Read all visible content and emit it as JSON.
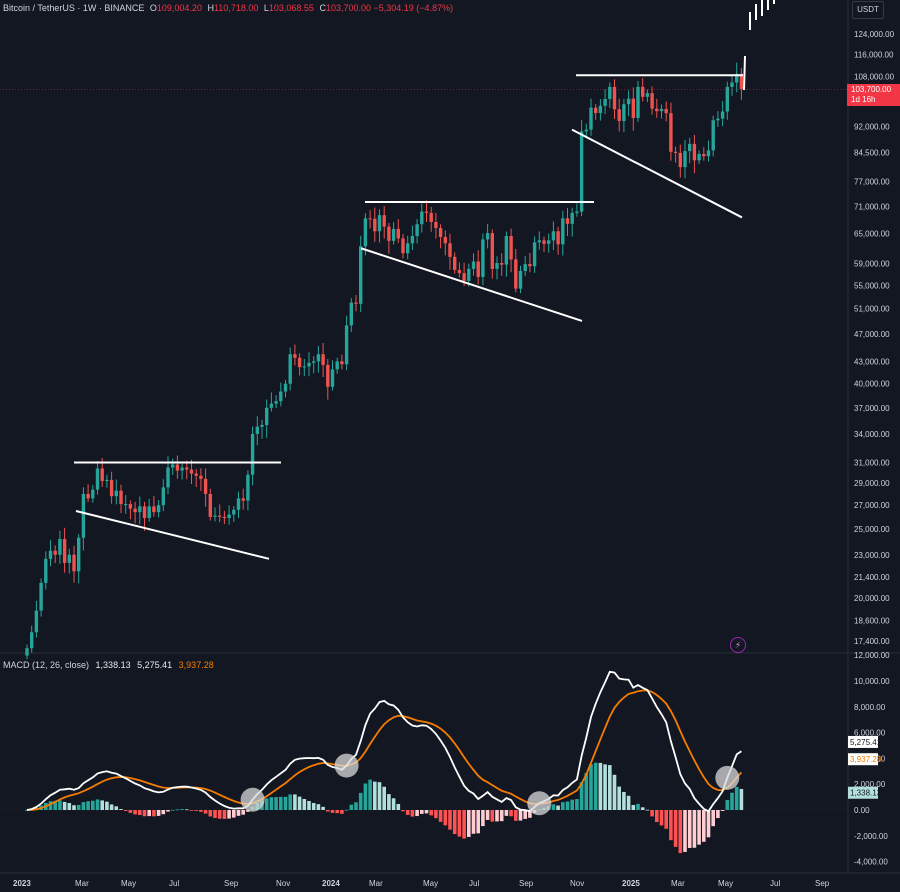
{
  "header": {
    "symbol": "Bitcoin / TetherUS · 1W · BINANCE",
    "o_label": "O",
    "o_value": "109,004.20",
    "h_label": "H",
    "h_value": "110,718.00",
    "l_label": "L",
    "l_value": "103,068.55",
    "c_label": "C",
    "c_value": "103,700.00",
    "change": "−5,304.19 (−4.87%)"
  },
  "currency": "USDT",
  "current_price": {
    "value": "103,700.00",
    "countdown": "1d 16h"
  },
  "macd_header": {
    "title": "MACD (12, 26, close)",
    "histogram": "1,338.13",
    "macd": "5,275.41",
    "signal": "3,937.28"
  },
  "colors": {
    "background": "#131722",
    "up": "#26a69a",
    "down": "#ef5350",
    "macd_line": "#ffffff",
    "signal_line": "#f57c00",
    "hist_up_strong": "#26a69a",
    "hist_up_weak": "#b2dfdb",
    "hist_down_strong": "#ff5252",
    "hist_down_weak": "#ffcdd2"
  },
  "chart_data": [
    {
      "type": "candlestick",
      "scale": "log",
      "price_axis_labels": [
        "124,000.00",
        "116,000.00",
        "108,000.00",
        "100,000.00",
        "92,000.00",
        "84,500.00",
        "77,000.00",
        "71,000.00",
        "65,000.00",
        "59,000.00",
        "55,000.00",
        "51,000.00",
        "47,000.00",
        "43,000.00",
        "40,000.00",
        "37,000.00",
        "34,000.00",
        "31,000.00",
        "29,000.00",
        "27,000.00",
        "25,000.00",
        "23,000.00",
        "21,400.00",
        "20,000.00",
        "18,600.00",
        "17,400.00"
      ],
      "time_axis_labels": [
        "2023",
        "Mar",
        "May",
        "Jul",
        "Sep",
        "Nov",
        "2024",
        "Mar",
        "May",
        "Jul",
        "Sep",
        "Nov",
        "2025",
        "Mar",
        "May",
        "Jul",
        "Sep"
      ],
      "closes": [
        17000,
        17900,
        19200,
        21000,
        22700,
        23300,
        23000,
        24200,
        22400,
        23000,
        21800,
        24300,
        28000,
        27600,
        28400,
        30400,
        29200,
        29300,
        27800,
        28300,
        27100,
        27100,
        26700,
        26400,
        26900,
        25900,
        26900,
        26400,
        27000,
        28600,
        30500,
        30800,
        30200,
        30500,
        30300,
        29900,
        29700,
        29400,
        28000,
        26000,
        26100,
        26000,
        25900,
        26200,
        26600,
        27600,
        27400,
        29800,
        34000,
        34800,
        35000,
        37000,
        37500,
        37800,
        39000,
        40000,
        44000,
        43500,
        42200,
        42300,
        42800,
        43000,
        44000,
        42500,
        39600,
        41900,
        43000,
        42600,
        48300,
        52000,
        51800,
        62400,
        68300,
        68200,
        65500,
        69000,
        66500,
        63500,
        66000,
        64000,
        61000,
        63000,
        64500,
        67000,
        69800,
        69500,
        67500,
        66200,
        64300,
        63000,
        60300,
        57800,
        57200,
        55800,
        58000,
        59400,
        56500,
        63800,
        65100,
        58000,
        59100,
        58800,
        64500,
        59800,
        54400,
        57600,
        58900,
        58500,
        63200,
        63600,
        62900,
        63600,
        65500,
        62800,
        68300,
        67100,
        69500,
        69800,
        90500,
        91000,
        97700,
        96000,
        98300,
        100500,
        104500,
        97200,
        93600,
        98800,
        100600,
        94500,
        104500,
        101200,
        102400,
        97400,
        96600,
        97300,
        96000,
        84700,
        84400,
        80600,
        84900,
        86900,
        82400,
        84100,
        83500,
        85100,
        93800,
        94300,
        96500,
        104500,
        106000,
        109000,
        103700
      ],
      "resistance_lines": [
        {
          "from_week": "2023-06",
          "to_week": "2023-11",
          "price": 31000
        },
        {
          "from_week": "2024-03",
          "to_week": "2024-11",
          "price": 72000
        },
        {
          "from_week": "2024-12",
          "to_week": "2025-05",
          "price": 108500
        }
      ],
      "support_lines": [
        {
          "from_price": 26500,
          "to_price": 22700
        },
        {
          "from_price": 62000,
          "to_price": 49000
        },
        {
          "from_price": 91000,
          "to_price": 68500
        }
      ]
    },
    {
      "type": "macd",
      "y_axis_labels": [
        "12,000.00",
        "10,000.00",
        "8,000.00",
        "6,000.00",
        "4,000.00",
        "2,000.00",
        "0.00",
        "-2,000.00",
        "-4,000.00"
      ],
      "macd_current": 5275.41,
      "signal_current": 3937.28,
      "histogram_current": 1338.13,
      "crossovers": 4
    }
  ]
}
